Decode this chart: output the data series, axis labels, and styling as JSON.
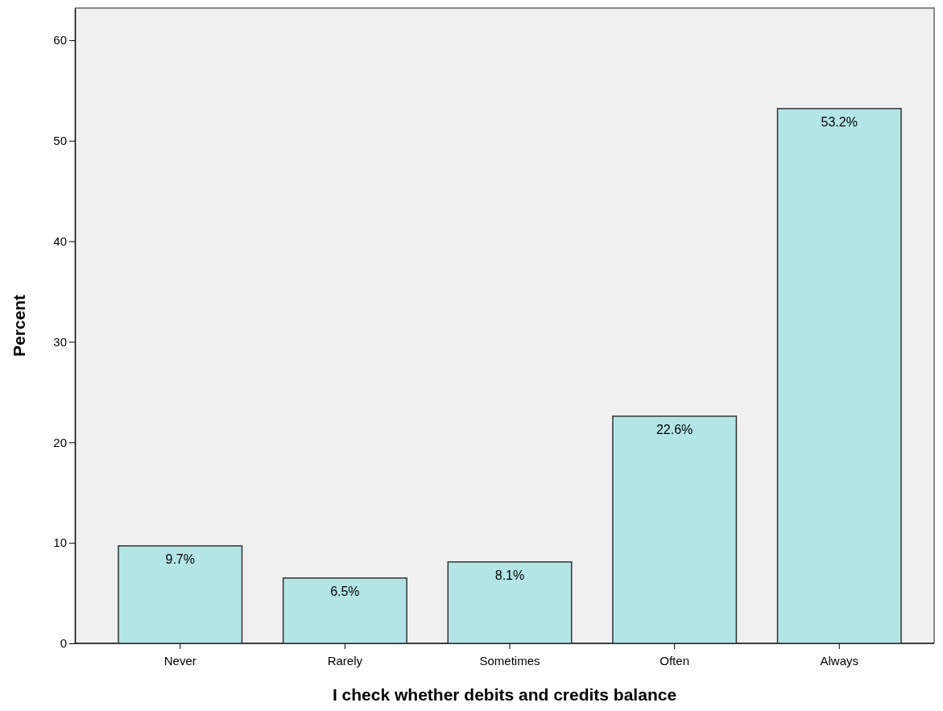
{
  "chart_data": {
    "type": "bar",
    "xlabel": "I check whether debits and credits balance",
    "ylabel": "Percent",
    "categories": [
      "Never",
      "Rarely",
      "Sometimes",
      "Often",
      "Always"
    ],
    "values": [
      9.7,
      6.5,
      8.1,
      22.6,
      53.2
    ],
    "value_labels": [
      "9.7%",
      "6.5%",
      "8.1%",
      "22.6%",
      "53.2%"
    ],
    "color": "#b3e5e7",
    "ylim": [
      0,
      63.2
    ],
    "yticks": [
      0,
      10,
      20,
      30,
      40,
      50,
      60
    ],
    "grid": false
  }
}
